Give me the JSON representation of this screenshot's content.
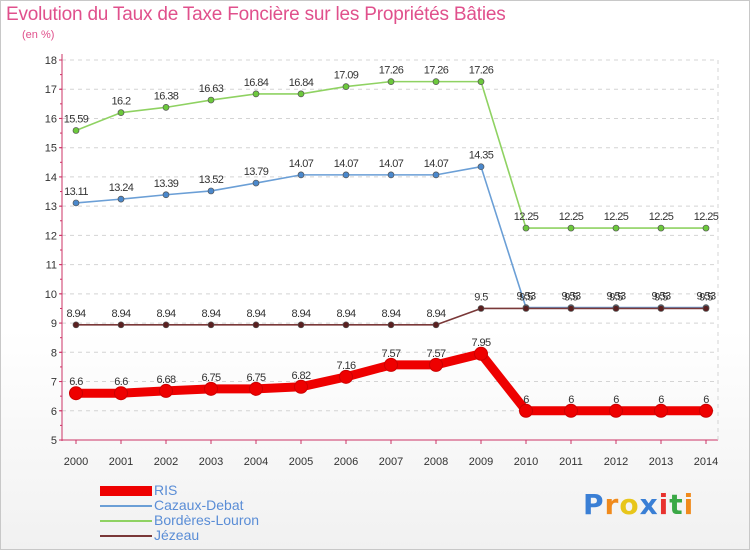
{
  "header": {
    "title": "Evolution du Taux de Taxe Foncière sur les Propriétés Bâties",
    "unit": "(en %)"
  },
  "logo": {
    "letters": [
      "P",
      "r",
      "o",
      "x",
      "i",
      "t",
      "i"
    ],
    "colors": [
      "#3a7fd5",
      "#f08a1c",
      "#e8c61a",
      "#3a7fd5",
      "#e8322e",
      "#3aa846",
      "#f08a1c"
    ]
  },
  "chart_data": {
    "type": "line",
    "title": "Evolution du Taux de Taxe Foncière sur les Propriétés Bâties",
    "ylabel": "(en %)",
    "xlabel": "",
    "ylim": [
      5,
      18
    ],
    "yticks": [
      5,
      6,
      7,
      8,
      9,
      10,
      11,
      12,
      13,
      14,
      15,
      16,
      17,
      18
    ],
    "categories": [
      "2000",
      "2001",
      "2002",
      "2003",
      "2004",
      "2005",
      "2006",
      "2007",
      "2008",
      "2009",
      "2010",
      "2011",
      "2012",
      "2013",
      "2014"
    ],
    "grid": "horizontal dashed",
    "series": [
      {
        "name": "Bordères-Louron",
        "color": "#8fd262",
        "marker": "#6cc93c",
        "values": [
          15.59,
          16.2,
          16.38,
          16.63,
          16.84,
          16.84,
          17.09,
          17.26,
          17.26,
          17.26,
          12.25,
          12.25,
          12.25,
          12.25,
          12.25
        ],
        "labels": [
          "15.59",
          "16.2",
          "16.38",
          "16.63",
          "16.84",
          "16.84",
          "17.09",
          "17.26",
          "17.26",
          "17.26",
          "12.25",
          "12.25",
          "12.25",
          "12.25",
          "12.25"
        ]
      },
      {
        "name": "Cazaux-Debat",
        "color": "#6b9fd6",
        "marker": "#4a88cc",
        "values": [
          13.11,
          13.24,
          13.39,
          13.52,
          13.79,
          14.07,
          14.07,
          14.07,
          14.07,
          14.35,
          9.53,
          9.53,
          9.53,
          9.53,
          9.53
        ],
        "labels": [
          "13.11",
          "13.24",
          "13.39",
          "13.52",
          "13.79",
          "14.07",
          "14.07",
          "14.07",
          "14.07",
          "14.35",
          "9.53",
          "9.53",
          "9.53",
          "9.53",
          "9.53"
        ]
      },
      {
        "name": "Jézeau",
        "color": "#7a3838",
        "marker": "#5a2020",
        "values": [
          8.94,
          8.94,
          8.94,
          8.94,
          8.94,
          8.94,
          8.94,
          8.94,
          8.94,
          9.5,
          9.5,
          9.5,
          9.5,
          9.5,
          9.5
        ],
        "labels": [
          "8.94",
          "8.94",
          "8.94",
          "8.94",
          "8.94",
          "8.94",
          "8.94",
          "8.94",
          "8.94",
          "9.5",
          "9.5",
          "9.5",
          "9.5",
          "9.5",
          "9.5"
        ]
      },
      {
        "name": "RIS",
        "color": "#ee0000",
        "marker": "#ee0000",
        "values": [
          6.6,
          6.6,
          6.68,
          6.75,
          6.75,
          6.82,
          7.16,
          7.57,
          7.57,
          7.95,
          6,
          6,
          6,
          6,
          6
        ],
        "labels": [
          "6.6",
          "6.6",
          "6.68",
          "6.75",
          "6.75",
          "6.82",
          "7.16",
          "7.57",
          "7.57",
          "7.95",
          "6",
          "6",
          "6",
          "6",
          "6"
        ]
      }
    ],
    "legend": [
      "RIS",
      "Cazaux-Debat",
      "Bordères-Louron",
      "Jézeau"
    ],
    "legend_position": "bottom-left"
  }
}
